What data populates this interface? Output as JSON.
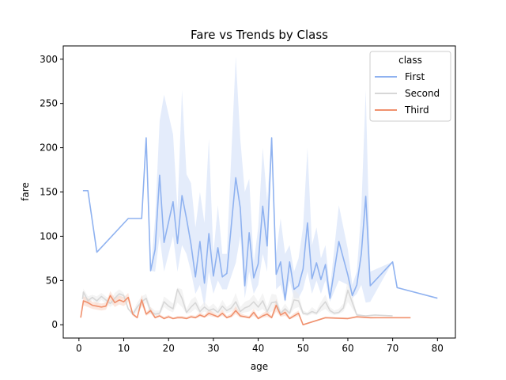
{
  "chart_data": {
    "type": "line",
    "title": "Fare vs Trends by Class",
    "xlabel": "age",
    "ylabel": "fare",
    "xlim": [
      -3.5,
      84
    ],
    "ylim": [
      -15,
      315
    ],
    "xticks": [
      0,
      10,
      20,
      30,
      40,
      50,
      60,
      70,
      80
    ],
    "yticks": [
      0,
      50,
      100,
      150,
      200,
      250,
      300
    ],
    "grid": false,
    "legend": {
      "title": "class",
      "position": "top-right"
    },
    "series": [
      {
        "name": "First",
        "color": "#8fb2f0",
        "band_color": "#cddcf8",
        "x": [
          0.9,
          2,
          4,
          11,
          14,
          15,
          16,
          17,
          18,
          19,
          21,
          22,
          23,
          24,
          25,
          26,
          27,
          28,
          29,
          30,
          31,
          32,
          33,
          35,
          36,
          37,
          38,
          39,
          40,
          41,
          42,
          43,
          44,
          45,
          46,
          47,
          48,
          49,
          50,
          51,
          52,
          53,
          54,
          55,
          56,
          58,
          60,
          61,
          62,
          63,
          64,
          65,
          70,
          71,
          80
        ],
        "y": [
          151.5,
          151.5,
          81.9,
          120,
          120,
          211.3,
          61,
          85,
          169,
          93,
          139,
          92,
          146,
          120,
          91,
          54,
          94,
          47,
          103,
          55,
          87,
          54,
          58,
          166,
          132,
          44,
          104,
          53,
          69,
          134,
          89,
          211.3,
          57,
          71,
          28,
          71,
          40,
          44,
          63,
          115,
          52,
          70,
          51,
          68,
          30,
          94,
          56,
          33,
          45,
          80,
          145,
          44,
          71,
          42,
          30
        ],
        "ci_low": [
          151.5,
          151.5,
          81.9,
          120,
          120,
          211.3,
          61,
          60,
          100,
          60,
          100,
          60,
          90,
          80,
          60,
          35,
          45,
          20,
          60,
          35,
          50,
          40,
          40,
          70,
          100,
          30,
          60,
          35,
          45,
          80,
          60,
          211.3,
          40,
          45,
          25,
          50,
          30,
          30,
          40,
          60,
          35,
          50,
          35,
          50,
          26,
          50,
          45,
          30,
          35,
          45,
          25,
          26,
          71,
          42,
          30
        ],
        "ci_high": [
          151.5,
          151.5,
          81.9,
          120,
          120,
          211.3,
          61,
          120,
          230,
          260,
          215,
          130,
          265,
          170,
          160,
          110,
          150,
          115,
          210,
          80,
          135,
          80,
          80,
          303,
          210,
          150,
          165,
          70,
          110,
          200,
          140,
          211.3,
          80,
          120,
          80,
          90,
          60,
          75,
          110,
          200,
          90,
          110,
          75,
          90,
          40,
          135,
          85,
          45,
          60,
          130,
          265,
          60,
          71,
          42,
          30
        ]
      },
      {
        "name": "Second",
        "color": "#d7d7d7",
        "band_color": "#ebebeb",
        "x": [
          0.8,
          1,
          2,
          3,
          4,
          5,
          6,
          7,
          8,
          9,
          10,
          11,
          12,
          13,
          14,
          15,
          16,
          17,
          18,
          19,
          20,
          21,
          22,
          23,
          24,
          25,
          26,
          27,
          28,
          29,
          30,
          31,
          32,
          33,
          34,
          35,
          36,
          37,
          38,
          39,
          40,
          41,
          42,
          43,
          44,
          45,
          46,
          47,
          48,
          49,
          50,
          51,
          52,
          53,
          54,
          55,
          56,
          57,
          58,
          59,
          60,
          62,
          64,
          66,
          70
        ],
        "y": [
          29,
          37,
          27,
          31,
          27,
          32,
          28,
          24,
          30,
          35,
          33,
          18,
          12,
          20,
          26,
          30,
          15,
          12,
          13,
          26,
          21,
          18,
          40,
          30,
          14,
          20,
          25,
          15,
          20,
          16,
          18,
          14,
          21,
          16,
          19,
          26,
          15,
          19,
          21,
          26,
          20,
          27,
          15,
          25,
          26,
          13,
          18,
          13,
          28,
          27,
          13,
          12,
          15,
          13,
          20,
          26,
          16,
          13,
          14,
          19,
          39,
          11,
          10,
          11,
          10
        ],
        "ci_low": [
          29,
          30,
          22,
          28,
          22,
          28,
          24,
          20,
          24,
          30,
          30,
          18,
          10,
          15,
          20,
          25,
          12,
          10,
          11,
          20,
          16,
          14,
          25,
          20,
          12,
          14,
          18,
          12,
          15,
          13,
          14,
          12,
          16,
          13,
          15,
          18,
          12,
          14,
          15,
          18,
          15,
          18,
          12,
          15,
          18,
          11,
          14,
          11,
          18,
          20,
          11,
          10,
          12,
          11,
          15,
          18,
          13,
          11,
          12,
          15,
          26,
          10,
          10,
          11,
          10
        ],
        "ci_high": [
          29,
          41,
          32,
          34,
          32,
          36,
          32,
          28,
          36,
          40,
          36,
          18,
          14,
          25,
          32,
          35,
          20,
          16,
          16,
          32,
          28,
          24,
          42,
          40,
          18,
          28,
          32,
          20,
          26,
          20,
          24,
          18,
          28,
          20,
          24,
          36,
          20,
          26,
          28,
          34,
          26,
          36,
          20,
          35,
          34,
          16,
          24,
          16,
          40,
          35,
          16,
          14,
          20,
          16,
          26,
          34,
          20,
          16,
          18,
          24,
          52,
          13,
          10,
          11,
          10
        ]
      },
      {
        "name": "Third",
        "color": "#f0916e",
        "band_color": "#f9d3c3",
        "x": [
          0.4,
          1,
          2,
          3,
          4,
          5,
          6,
          7,
          8,
          9,
          10,
          11,
          12,
          13,
          14,
          15,
          16,
          17,
          18,
          19,
          20,
          21,
          22,
          23,
          24,
          25,
          26,
          27,
          28,
          29,
          30,
          31,
          32,
          33,
          34,
          35,
          36,
          37,
          38,
          39,
          40,
          41,
          42,
          43,
          44,
          45,
          46,
          47,
          48,
          49,
          50,
          55,
          60,
          62,
          65,
          70,
          74
        ],
        "y": [
          8,
          27,
          25,
          22,
          21,
          20,
          21,
          33,
          25,
          28,
          26,
          31,
          12,
          8,
          28,
          12,
          16,
          8,
          10,
          7,
          9,
          7,
          8,
          8,
          7,
          9,
          8,
          11,
          9,
          13,
          11,
          9,
          13,
          8,
          10,
          16,
          10,
          9,
          8,
          14,
          7,
          10,
          12,
          8,
          22,
          11,
          14,
          7,
          10,
          13,
          0,
          8,
          7,
          9,
          8,
          8,
          8
        ],
        "ci_low": [
          8,
          22,
          20,
          18,
          17,
          16,
          17,
          27,
          20,
          23,
          21,
          26,
          10,
          7,
          22,
          10,
          13,
          7,
          9,
          6,
          8,
          6,
          7,
          7,
          6,
          8,
          7,
          9,
          8,
          10,
          9,
          8,
          10,
          7,
          8,
          12,
          8,
          8,
          7,
          10,
          6,
          8,
          9,
          7,
          15,
          9,
          10,
          6,
          8,
          10,
          0,
          7,
          6,
          8,
          7,
          8,
          8
        ],
        "ci_high": [
          8,
          32,
          30,
          26,
          25,
          24,
          25,
          38,
          30,
          33,
          31,
          36,
          14,
          9,
          34,
          14,
          20,
          10,
          12,
          9,
          11,
          8,
          10,
          10,
          9,
          11,
          10,
          14,
          11,
          17,
          14,
          11,
          17,
          10,
          13,
          21,
          13,
          11,
          10,
          18,
          9,
          13,
          16,
          10,
          29,
          14,
          18,
          9,
          13,
          16,
          0,
          9,
          8,
          10,
          9,
          8,
          8
        ]
      }
    ]
  }
}
